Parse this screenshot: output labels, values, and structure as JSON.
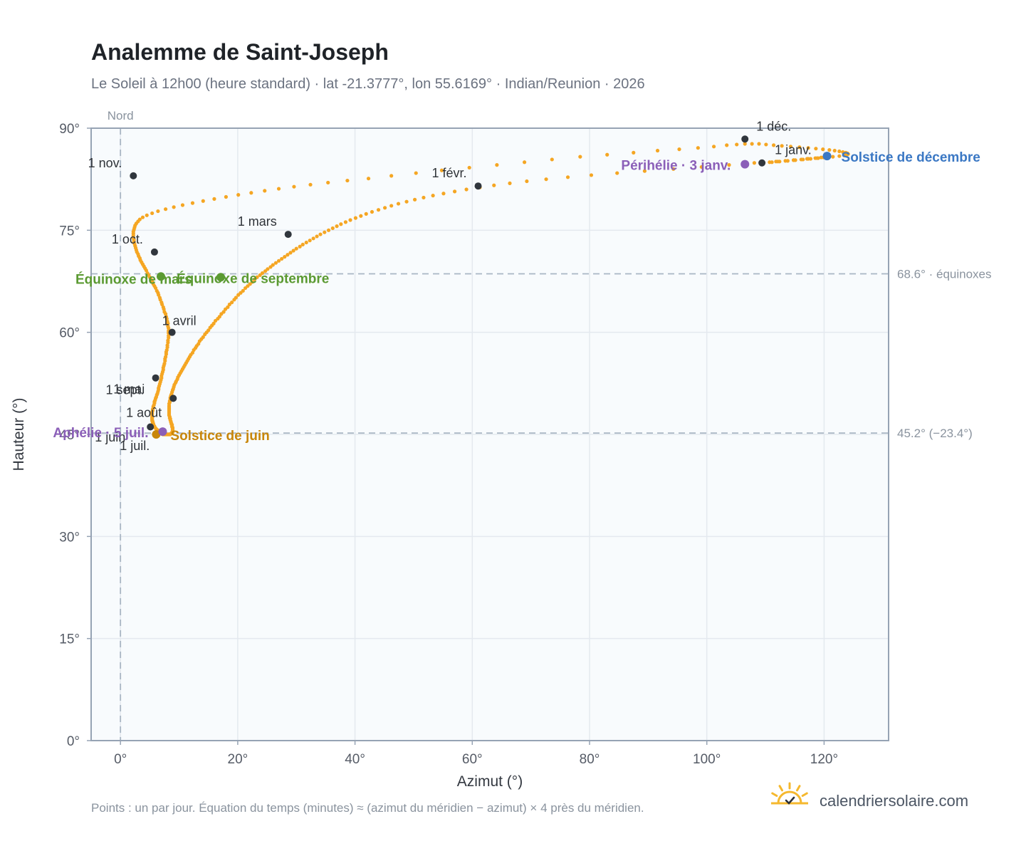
{
  "page": {
    "title": "Analemme de Saint-Joseph",
    "subtitle": "Le Soleil à 12h00 (heure standard) · lat -21.3777°, lon 55.6169° · Indian/Reunion · 2026",
    "north_label": "Nord",
    "footnote": "Points : un par jour. Équation du temps (minutes) ≈ (azimut du méridien − azimut) × 4 près du méridien.",
    "brand": "calendriersolaire.com"
  },
  "colors": {
    "curve": "#f5a623",
    "month_marker": "#30363d",
    "equinox": "#5b9a32",
    "june_solstice": "#c8860a",
    "december_solstice": "#3b78c4",
    "apsis": "#8b5fb8",
    "reference_line": "#a9b6c4",
    "grid": "#e4e9ef",
    "plot_bg": "#f8fbfd",
    "frame": "#96a3b4",
    "logo": "#f5b82e"
  },
  "chart_data": {
    "type": "scatter",
    "title": "Analemme de Saint-Joseph",
    "xlabel": "Azimut (°)",
    "ylabel": "Hauteur (°)",
    "xlim": [
      -5,
      131
    ],
    "ylim": [
      0,
      90
    ],
    "x_ticks": [
      0,
      20,
      40,
      60,
      80,
      100,
      120
    ],
    "x_tick_labels": [
      "0°",
      "20°",
      "40°",
      "60°",
      "80°",
      "100°",
      "120°"
    ],
    "y_ticks": [
      0,
      15,
      30,
      45,
      60,
      75,
      90
    ],
    "y_tick_labels": [
      "0°",
      "15°",
      "30°",
      "45°",
      "60°",
      "75°",
      "90°"
    ],
    "grid": true,
    "series": [
      {
        "marker": "one point per day",
        "x": [
          109.4,
          110.7,
          112.1,
          113.4,
          114.8,
          116.1,
          117.3,
          118.5,
          119.5,
          120.2,
          120.6,
          120.5,
          119.9,
          118.8,
          117.1,
          114.8,
          111.8,
          108.1,
          103.8,
          99.1,
          94.3,
          89.4,
          84.7,
          80.3,
          76.3,
          72.6,
          69.3,
          66.4,
          63.7,
          61.3,
          59.0,
          57.0,
          55.1,
          53.3,
          51.7,
          50.2,
          48.8,
          47.4,
          46.2,
          45.1,
          44.0,
          42.9,
          41.9,
          41.0,
          40.1,
          39.2,
          38.4,
          37.6,
          36.9,
          36.2,
          35.5,
          34.8,
          34.1,
          33.5,
          32.9,
          32.3,
          31.7,
          31.1,
          30.6,
          30.0,
          29.5,
          29.0,
          28.5,
          28.0,
          27.5,
          27.0,
          26.5,
          26.0,
          25.6,
          25.1,
          24.7,
          24.2,
          23.8,
          23.3,
          22.9,
          22.5,
          22.1,
          21.7,
          21.3,
          20.9,
          20.5,
          20.1,
          19.7,
          19.4,
          19.0,
          18.6,
          18.3,
          17.9,
          17.6,
          17.2,
          16.9,
          16.6,
          16.2,
          15.9,
          15.6,
          15.3,
          15.0,
          14.7,
          14.4,
          14.1,
          13.8,
          13.5,
          13.3,
          13.0,
          12.8,
          12.5,
          12.3,
          12.0,
          11.8,
          11.6,
          11.4,
          11.2,
          11.0,
          10.8,
          10.6,
          10.4,
          10.2,
          10.0,
          9.8,
          9.7,
          9.5,
          9.4,
          9.2,
          9.1,
          9.0,
          8.9,
          8.8,
          8.7,
          8.6,
          8.5,
          8.5,
          8.4,
          8.4,
          8.3,
          8.3,
          8.3,
          8.3,
          8.3,
          8.3,
          8.3,
          8.3,
          8.3,
          8.4,
          8.4,
          8.5,
          8.5,
          8.6,
          8.6,
          8.7,
          8.7,
          8.8,
          8.8,
          8.8,
          8.9,
          8.9,
          8.9,
          8.9,
          8.9,
          8.9,
          8.9,
          8.9,
          8.8,
          8.8,
          8.7,
          8.6,
          8.6,
          8.5,
          8.4,
          8.3,
          8.2,
          8.1,
          8.0,
          7.9,
          7.8,
          7.7,
          7.6,
          7.5,
          7.4,
          7.3,
          7.2,
          7.1,
          7.0,
          6.9,
          6.8,
          6.8,
          6.7,
          6.6,
          6.5,
          6.4,
          6.3,
          6.2,
          6.1,
          6.0,
          5.9,
          5.8,
          5.8,
          5.7,
          5.6,
          5.6,
          5.5,
          5.5,
          5.4,
          5.4,
          5.4,
          5.4,
          5.4,
          5.4,
          5.4,
          5.4,
          5.5,
          5.5,
          5.6,
          5.6,
          5.7,
          5.8,
          5.8,
          5.9,
          6.0,
          6.1,
          6.2,
          6.3,
          6.4,
          6.5,
          6.5,
          6.6,
          6.7,
          6.8,
          6.9,
          7.0,
          7.0,
          7.1,
          7.2,
          7.3,
          7.3,
          7.4,
          7.5,
          7.6,
          7.6,
          7.7,
          7.8,
          7.8,
          7.9,
          8.0,
          8.0,
          8.1,
          8.1,
          8.2,
          8.2,
          8.2,
          8.2,
          8.2,
          8.1,
          8.1,
          8.0,
          7.9,
          7.8,
          7.7,
          7.5,
          7.4,
          7.3,
          7.1,
          7.0,
          6.8,
          6.7,
          6.5,
          6.4,
          6.2,
          6.0,
          5.8,
          5.6,
          5.4,
          5.2,
          5.0,
          4.8,
          4.6,
          4.4,
          4.2,
          4.0,
          3.8,
          3.6,
          3.4,
          3.3,
          3.1,
          3.0,
          2.8,
          2.7,
          2.6,
          2.5,
          2.4,
          2.3,
          2.3,
          2.2,
          2.2,
          2.2,
          2.2,
          2.3,
          2.4,
          2.5,
          2.7,
          3.0,
          3.3,
          3.8,
          4.5,
          5.4,
          6.4,
          7.7,
          9.1,
          10.6,
          12.3,
          14.1,
          16.0,
          18.0,
          20.1,
          22.3,
          24.6,
          27.0,
          29.6,
          32.4,
          35.4,
          38.7,
          42.3,
          46.2,
          50.4,
          54.8,
          59.5,
          64.2,
          68.9,
          73.6,
          78.4,
          83.0,
          87.5,
          91.6,
          95.3,
          98.5,
          101.2,
          103.4,
          105.1,
          106.5,
          107.7,
          108.9,
          110.1,
          111.4,
          112.8,
          114.3,
          115.8,
          117.3,
          118.6,
          119.8,
          120.9,
          121.8,
          122.6,
          123.2,
          123.7,
          124.0,
          124.1,
          123.9,
          123.4,
          122.6,
          121.5,
          120.3,
          119.0,
          117.7,
          116.4,
          115.1,
          113.8,
          112.4,
          111.1,
          109.7
        ],
        "y": [
          84.9,
          85.0,
          85.1,
          85.2,
          85.3,
          85.4,
          85.5,
          85.6,
          85.7,
          85.8,
          85.8,
          85.8,
          85.7,
          85.6,
          85.5,
          85.3,
          85.1,
          84.9,
          84.6,
          84.3,
          84.0,
          83.7,
          83.4,
          83.1,
          82.8,
          82.5,
          82.2,
          81.9,
          81.6,
          81.3,
          81.0,
          80.7,
          80.4,
          80.1,
          79.8,
          79.5,
          79.2,
          78.9,
          78.6,
          78.3,
          78.0,
          77.7,
          77.4,
          77.1,
          76.8,
          76.5,
          76.2,
          75.9,
          75.6,
          75.3,
          75.0,
          74.7,
          74.4,
          74.1,
          73.8,
          73.5,
          73.2,
          72.9,
          72.6,
          72.3,
          72.0,
          71.7,
          71.4,
          71.1,
          70.8,
          70.5,
          70.2,
          69.9,
          69.6,
          69.3,
          69.0,
          68.7,
          68.4,
          68.1,
          67.8,
          67.4,
          67.1,
          66.8,
          66.5,
          66.1,
          65.8,
          65.5,
          65.1,
          64.8,
          64.4,
          64.1,
          63.7,
          63.4,
          63.0,
          62.7,
          62.3,
          62.0,
          61.7,
          61.3,
          61.0,
          60.7,
          60.3,
          60.0,
          59.7,
          59.3,
          59.0,
          58.7,
          58.3,
          58.0,
          57.7,
          57.4,
          57.0,
          56.7,
          56.4,
          56.1,
          55.8,
          55.5,
          55.2,
          54.9,
          54.6,
          54.3,
          54.0,
          53.7,
          53.4,
          53.1,
          52.8,
          52.6,
          52.3,
          52.0,
          51.7,
          51.5,
          51.2,
          50.9,
          50.7,
          50.4,
          50.2,
          49.9,
          49.7,
          49.5,
          49.2,
          49.0,
          48.8,
          48.6,
          48.4,
          48.2,
          48.0,
          47.8,
          47.6,
          47.4,
          47.3,
          47.1,
          46.9,
          46.8,
          46.6,
          46.5,
          46.4,
          46.2,
          46.1,
          46.0,
          45.9,
          45.8,
          45.7,
          45.6,
          45.5,
          45.4,
          45.3,
          45.3,
          45.2,
          45.2,
          45.1,
          45.1,
          45.0,
          45.0,
          45.0,
          45.0,
          45.0,
          45.0,
          45.0,
          45.0,
          45.0,
          45.0,
          45.0,
          45.0,
          45.0,
          45.0,
          45.1,
          45.1,
          45.2,
          45.2,
          45.3,
          45.3,
          45.4,
          45.5,
          45.6,
          45.6,
          45.7,
          45.8,
          45.9,
          46.0,
          46.1,
          46.2,
          46.3,
          46.5,
          46.6,
          46.7,
          46.9,
          47.0,
          47.2,
          47.3,
          47.5,
          47.7,
          47.9,
          48.1,
          48.3,
          48.5,
          48.7,
          48.9,
          49.1,
          49.3,
          49.6,
          49.8,
          50.0,
          50.3,
          50.5,
          50.8,
          51.0,
          51.3,
          51.6,
          51.8,
          52.1,
          52.4,
          52.7,
          53.0,
          53.3,
          53.6,
          53.9,
          54.2,
          54.5,
          54.8,
          55.1,
          55.4,
          55.8,
          56.1,
          56.4,
          56.8,
          57.1,
          57.4,
          57.8,
          58.1,
          58.5,
          58.8,
          59.2,
          59.5,
          59.9,
          60.2,
          60.6,
          60.9,
          61.3,
          61.6,
          62.0,
          62.3,
          62.7,
          63.0,
          63.4,
          63.7,
          64.1,
          64.4,
          64.8,
          65.1,
          65.5,
          65.8,
          66.1,
          66.5,
          66.8,
          67.1,
          67.5,
          67.8,
          68.1,
          68.4,
          68.7,
          69.1,
          69.4,
          69.7,
          70.0,
          70.3,
          70.6,
          70.9,
          71.2,
          71.5,
          71.8,
          72.1,
          72.4,
          72.7,
          73.0,
          73.3,
          73.6,
          73.9,
          74.2,
          74.5,
          74.8,
          75.1,
          75.4,
          75.7,
          76.0,
          76.3,
          76.6,
          76.9,
          77.2,
          77.5,
          77.8,
          78.1,
          78.4,
          78.7,
          79.0,
          79.3,
          79.6,
          79.9,
          80.2,
          80.5,
          80.8,
          81.1,
          81.4,
          81.7,
          82.0,
          82.3,
          82.6,
          83.0,
          83.4,
          83.8,
          84.2,
          84.6,
          85.0,
          85.4,
          85.8,
          86.1,
          86.4,
          86.7,
          86.9,
          87.1,
          87.3,
          87.5,
          87.6,
          87.7,
          87.7,
          87.7,
          87.6,
          87.5,
          87.4,
          87.3,
          87.2,
          87.1,
          87.0,
          86.9,
          86.8,
          86.7,
          86.6,
          86.5,
          86.4,
          86.3,
          86.2,
          86.1,
          86.0,
          85.9,
          85.8,
          85.7,
          85.6,
          85.5,
          85.4,
          85.3,
          85.2,
          85.1,
          85.0,
          84.9
        ]
      }
    ],
    "reference_lines": [
      {
        "axis": "y",
        "value": 68.6,
        "label": "68.6° · équinoxes"
      },
      {
        "axis": "y",
        "value": 45.2,
        "label": "45.2° (−23.4°)"
      },
      {
        "axis": "x",
        "value": 0,
        "label": "Nord"
      }
    ],
    "month_markers": [
      {
        "label": "1 janv.",
        "x": 109.4,
        "y": 84.9
      },
      {
        "label": "1 févr.",
        "x": 61.0,
        "y": 81.5
      },
      {
        "label": "1 mars",
        "x": 28.6,
        "y": 74.4
      },
      {
        "label": "1 avril",
        "x": 8.8,
        "y": 60.0
      },
      {
        "label": "1 mai",
        "x": 9.0,
        "y": 50.3
      },
      {
        "label": "1 juin",
        "x": 6.2,
        "y": 45.0
      },
      {
        "label": "1 juil.",
        "x": 6.2,
        "y": 45.0
      },
      {
        "label": "1 août",
        "x": 5.1,
        "y": 46.1
      },
      {
        "label": "1 sept.",
        "x": 6.0,
        "y": 53.3
      },
      {
        "label": "1 oct.",
        "x": 5.8,
        "y": 71.8
      },
      {
        "label": "1 nov.",
        "x": 2.2,
        "y": 83.0
      },
      {
        "label": "1 déc.",
        "x": 106.5,
        "y": 88.4
      }
    ],
    "events": [
      {
        "label": "Équinoxe de mars",
        "x": 6.9,
        "y": 68.2,
        "kind": "equinox"
      },
      {
        "label": "Équinoxe de septembre",
        "x": 17.1,
        "y": 68.1,
        "kind": "equinox"
      },
      {
        "label": "Solstice de juin",
        "x": 6.1,
        "y": 45.0,
        "kind": "june_solstice"
      },
      {
        "label": "Solstice de décembre",
        "x": 120.5,
        "y": 85.9,
        "kind": "december_solstice"
      },
      {
        "label": "Périhélie · 3 janv.",
        "x": 106.5,
        "y": 84.7,
        "kind": "apsis"
      },
      {
        "label": "Aphélie · 5 juil.",
        "x": 7.2,
        "y": 45.4,
        "kind": "apsis"
      }
    ]
  }
}
